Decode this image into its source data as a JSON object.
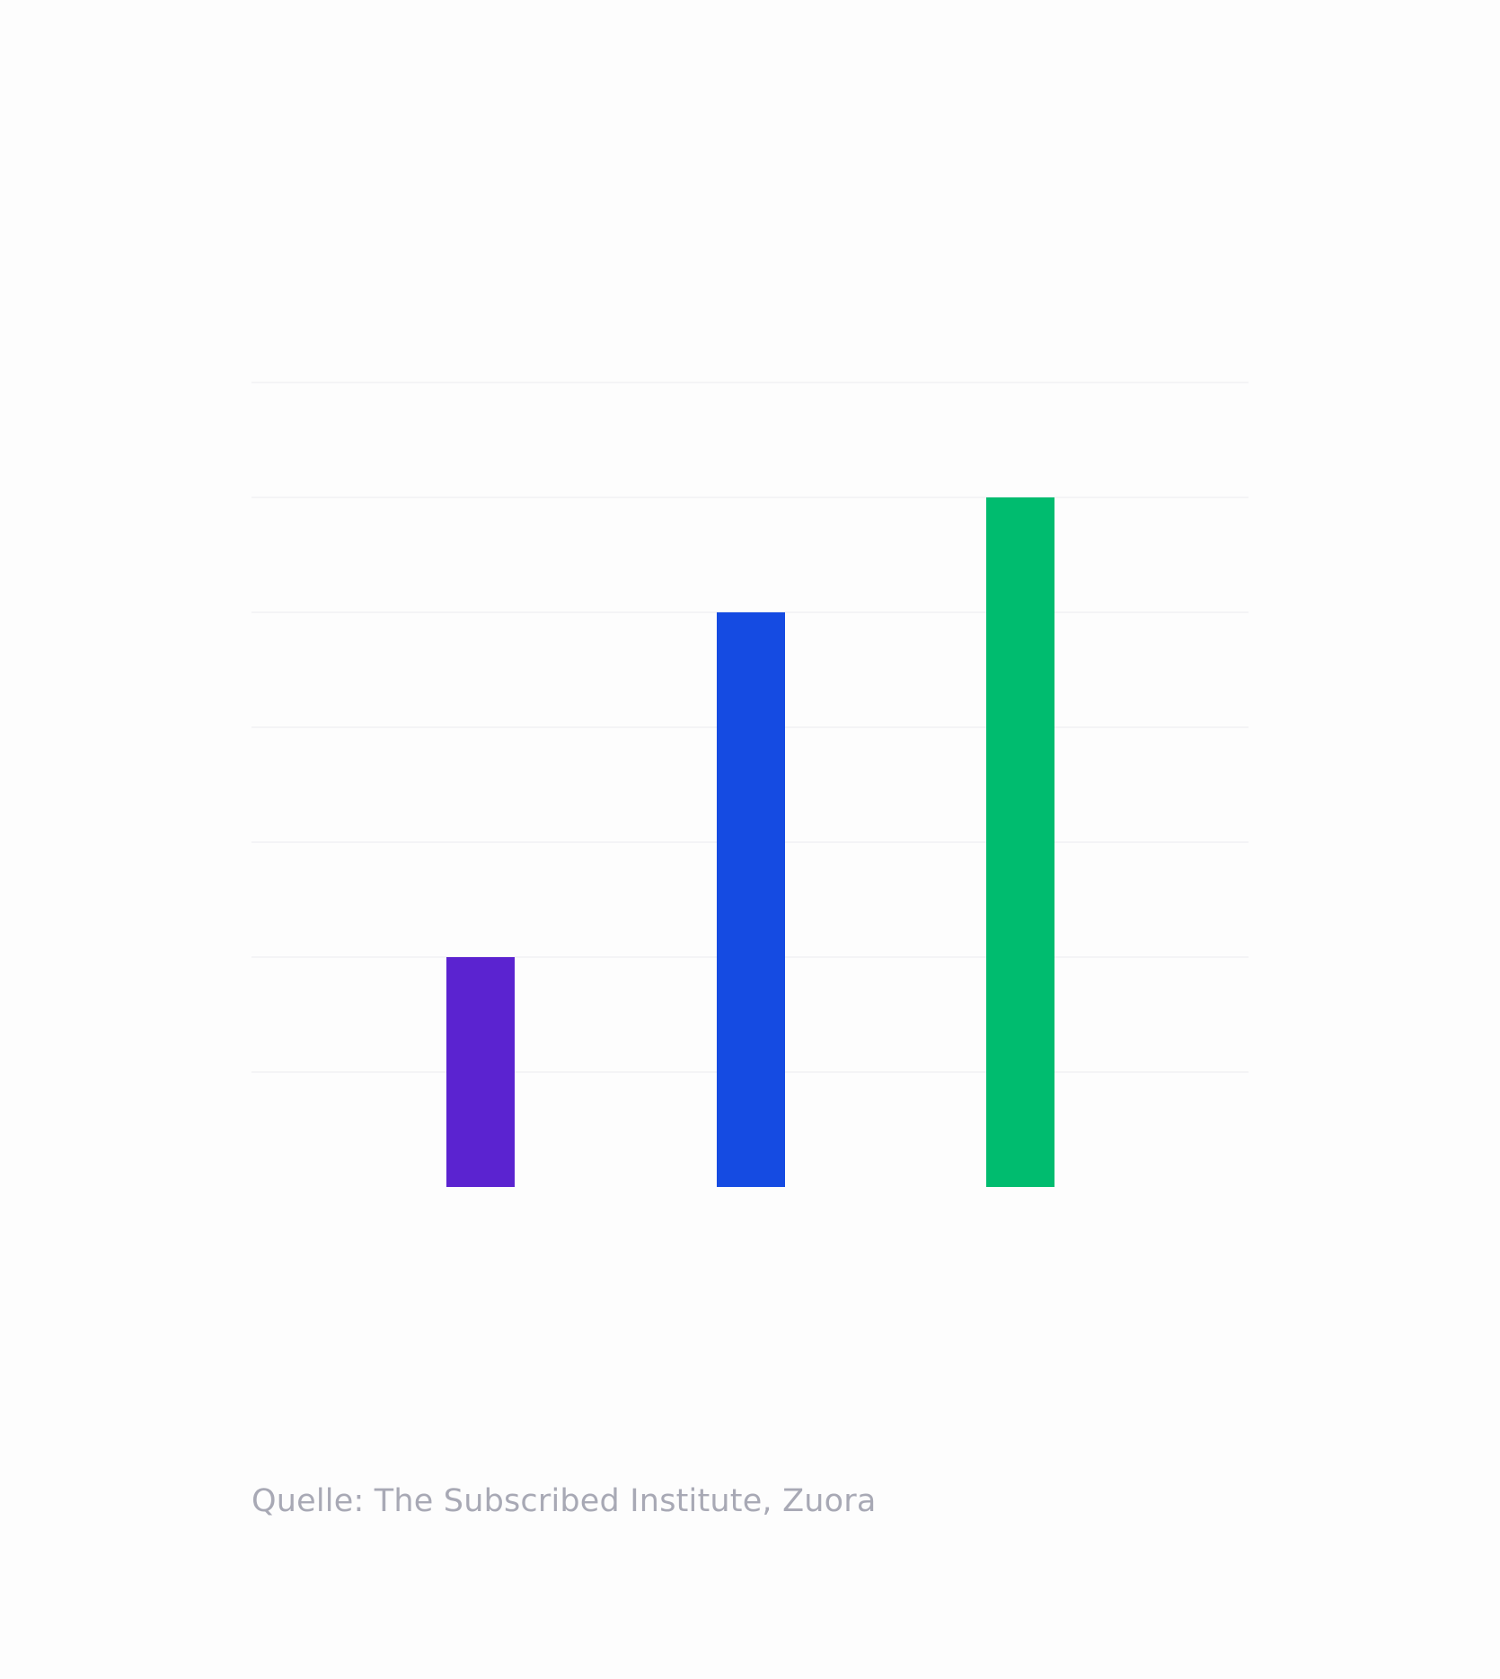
{
  "chart_data": {
    "type": "bar",
    "categories": [
      "",
      "",
      ""
    ],
    "values": [
      2,
      5,
      6
    ],
    "colors": [
      "#5b23d0",
      "#154be2",
      "#00bc6f"
    ],
    "ylim": [
      0,
      7
    ],
    "grid": true,
    "gridline_color": "#f4f4f6",
    "title": "",
    "xlabel": "",
    "ylabel": ""
  },
  "footer": {
    "source_text": "Quelle: The Subscribed Institute, Zuora"
  }
}
